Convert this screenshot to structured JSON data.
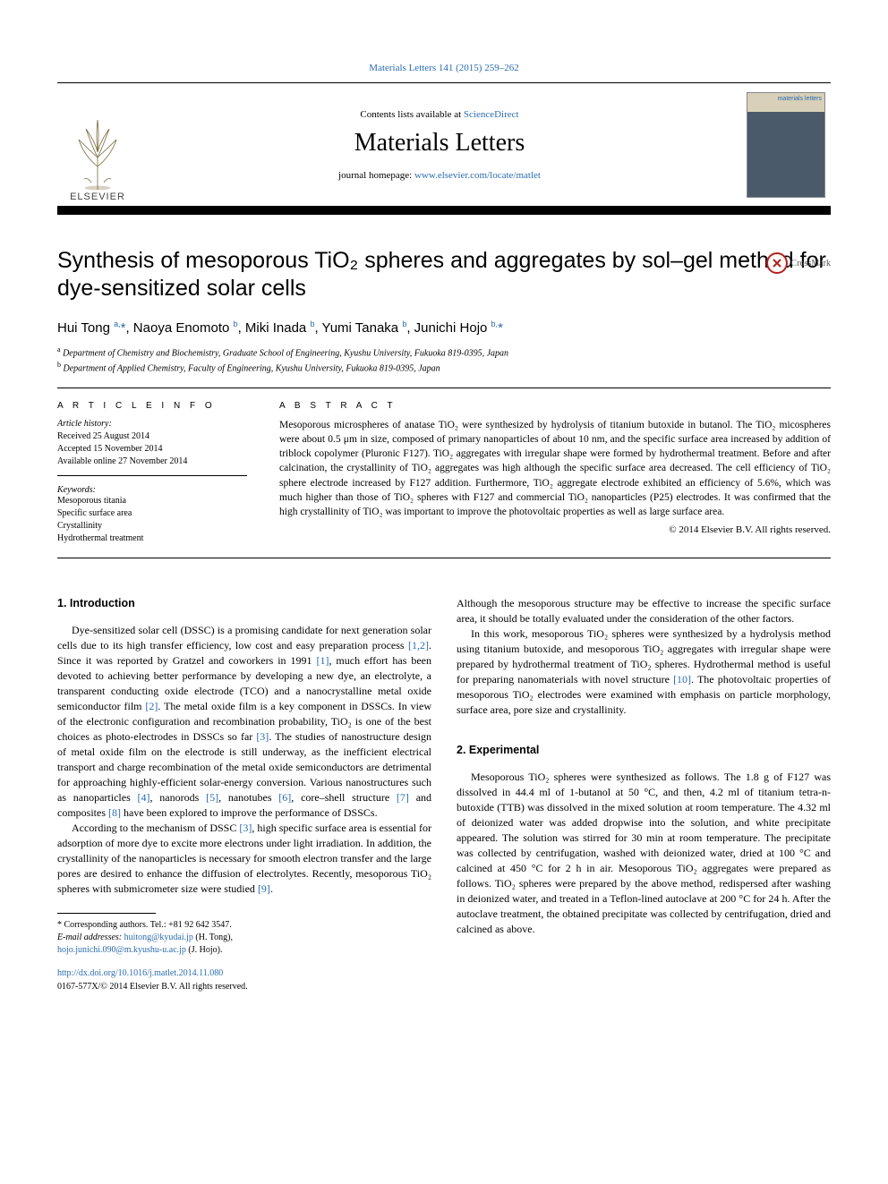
{
  "top_citation_link": "Materials Letters 141 (2015) 259–262",
  "header": {
    "contents_prefix": "Contents lists available at ",
    "contents_link": "ScienceDirect",
    "journal_name": "Materials Letters",
    "homepage_prefix": "journal homepage: ",
    "homepage_link": "www.elsevier.com/locate/matlet",
    "cover_label": "materials letters",
    "publisher": "ELSEVIER"
  },
  "crossmark_label": "CrossMark",
  "title": "Synthesis of mesoporous TiO₂ spheres and aggregates by sol–gel method for dye-sensitized solar cells",
  "authors_html": "Hui Tong <sup>a,</sup><span class='star'>*</span>, Naoya Enomoto <sup>b</sup>, Miki Inada <sup>b</sup>, Yumi Tanaka <sup>b</sup>, Junichi Hojo <sup>b,</sup><span class='star'>*</span>",
  "affiliations": {
    "a": "Department of Chemistry and Biochemistry, Graduate School of Engineering, Kyushu University, Fukuoka 819-0395, Japan",
    "b": "Department of Applied Chemistry, Faculty of Engineering, Kyushu University, Fukuoka 819-0395, Japan"
  },
  "article_info": {
    "label": "A R T I C L E   I N F O",
    "history_label": "Article history:",
    "received": "Received 25 August 2014",
    "accepted": "Accepted 15 November 2014",
    "online": "Available online 27 November 2014",
    "keywords_label": "Keywords:",
    "keywords": [
      "Mesoporous titania",
      "Specific surface area",
      "Crystallinity",
      "Hydrothermal treatment"
    ]
  },
  "abstract": {
    "label": "A B S T R A C T",
    "text": "Mesoporous microspheres of anatase TiO₂ were synthesized by hydrolysis of titanium butoxide in butanol. The TiO₂ micospheres were about 0.5 μm in size, composed of primary nanoparticles of about 10 nm, and the specific surface area increased by addition of triblock copolymer (Pluronic F127). TiO₂ aggregates with irregular shape were formed by hydrothermal treatment. Before and after calcination, the crystallinity of TiO₂ aggregates was high although the specific surface area decreased. The cell efficiency of TiO₂ sphere electrode increased by F127 addition. Furthermore, TiO₂ aggregate electrode exhibited an efficiency of 5.6%, which was much higher than those of TiO₂ spheres with F127 and commercial TiO₂ nanoparticles (P25) electrodes. It was confirmed that the high crystallinity of TiO₂ was important to improve the photovoltaic properties as well as large surface area.",
    "copyright": "© 2014 Elsevier B.V. All rights reserved."
  },
  "sections": {
    "intro_heading": "1.  Introduction",
    "intro_p1_pre": "Dye-sensitized solar cell (DSSC) is a promising candidate for next generation solar cells due to its high transfer efficiency, low cost and easy preparation process ",
    "ref_1_2": "[1,2]",
    "intro_p1_mid1": ". Since it was reported by Gratzel and coworkers in 1991 ",
    "ref_1": "[1]",
    "intro_p1_mid2": ", much effort has been devoted to achieving better performance by developing a new dye, an electrolyte, a transparent conducting oxide electrode (TCO) and a nanocrystalline metal oxide semiconductor film ",
    "ref_2": "[2]",
    "intro_p1_mid3": ". The metal oxide film is a key component in DSSCs. In view of the electronic configuration and recombination probability, TiO₂ is one of the best choices as photo-electrodes in DSSCs so far ",
    "ref_3": "[3]",
    "intro_p1_mid4": ". The studies of nanostructure design of metal oxide film on the electrode is still underway, as the inefficient electrical transport and charge recombination of the metal oxide semiconductors are detrimental for approaching highly-efficient solar-energy conversion. Various nanostructures such as nanoparticles ",
    "ref_4": "[4]",
    "intro_p1_mid5": ", nanorods ",
    "ref_5": "[5]",
    "intro_p1_mid6": ", nanotubes ",
    "ref_6": "[6]",
    "intro_p1_mid7": ", core–shell structure ",
    "ref_7": "[7]",
    "intro_p1_mid8": " and composites ",
    "ref_8": "[8]",
    "intro_p1_end": " have been explored to improve the performance of DSSCs.",
    "intro_p2_pre": "According to the mechanism of DSSC ",
    "intro_p2_mid": ", high specific surface area is essential for adsorption of more dye to excite more electrons under light irradiation. In addition, the crystallinity of the nanoparticles is necessary for smooth electron transfer and the large pores are desired to enhance the diffusion of electrolytes. Recently, mesoporous TiO₂ spheres with submicrometer size were studied ",
    "ref_9": "[9]",
    "intro_p2_end": ".",
    "col2_p1": "Although the mesoporous structure may be effective to increase the specific surface area, it should be totally evaluated under the consideration of the other factors.",
    "col2_p2_pre": "In this work, mesoporous TiO₂ spheres were synthesized by a hydrolysis method using titanium butoxide, and mesoporous TiO₂ aggregates with irregular shape were prepared by hydrothermal treatment of TiO₂ spheres. Hydrothermal method is useful for preparing nanomaterials with novel structure ",
    "ref_10": "[10]",
    "col2_p2_end": ". The photovoltaic properties of mesoporous TiO₂ electrodes were examined with emphasis on particle morphology, surface area, pore size and crystallinity.",
    "exp_heading": "2.  Experimental",
    "exp_p1": "Mesoporous TiO₂ spheres were synthesized as follows. The 1.8 g of F127 was dissolved in 44.4 ml of 1-butanol at 50 °C, and then, 4.2 ml of titanium tetra-n-butoxide (TTB) was dissolved in the mixed solution at room temperature. The 4.32 ml of deionized water was added dropwise into the solution, and white precipitate appeared. The solution was stirred for 30 min at room temperature. The precipitate was collected by centrifugation, washed with deionized water, dried at 100 °C and calcined at 450 °C for 2 h in air. Mesoporous TiO₂ aggregates were prepared as follows. TiO₂ spheres were prepared by the above method, redispersed after washing in deionized water, and treated in a Teflon-lined autoclave at 200 °C for 24 h. After the autoclave treatment, the obtained precipitate was collected by centrifugation, dried and calcined as above."
  },
  "footnotes": {
    "corr": "* Corresponding authors. Tel.: +81 92 642 3547.",
    "email_label": "E-mail addresses: ",
    "email1": "huitong@kyudai.jp",
    "email1_name": " (H. Tong),",
    "email2": "hojo.junichi.090@m.kyushu-u.ac.jp",
    "email2_name": " (J. Hojo)."
  },
  "doi": {
    "link": "http://dx.doi.org/10.1016/j.matlet.2014.11.080",
    "issn": "0167-577X/© 2014 Elsevier B.V. All rights reserved."
  },
  "colors": {
    "link": "#2b6cb0",
    "text": "#000000",
    "background": "#ffffff"
  }
}
